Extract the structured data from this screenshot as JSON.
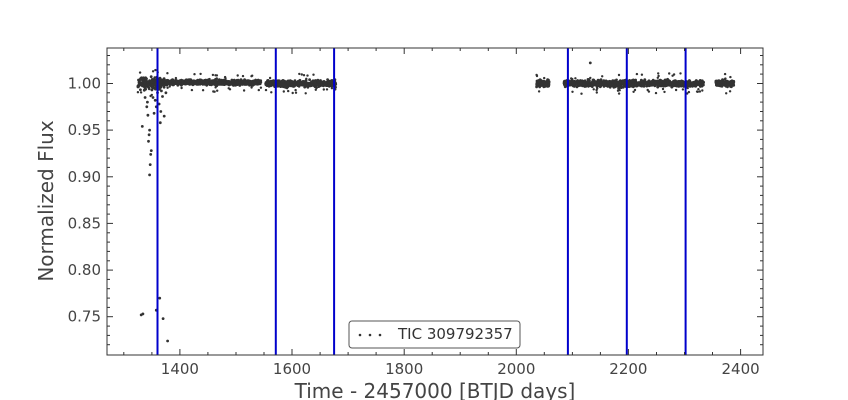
{
  "chart_data": {
    "type": "scatter",
    "title": "",
    "xlabel": "Time - 2457000 [BTJD days]",
    "ylabel": "Normalized Flux",
    "xlim": [
      1270,
      2440
    ],
    "ylim": [
      0.709,
      1.038
    ],
    "x_ticks": [
      1400,
      1600,
      1800,
      2000,
      2200,
      2400
    ],
    "x_tick_labels": [
      "1400",
      "1600",
      "1800",
      "2000",
      "2200",
      "2400"
    ],
    "y_ticks": [
      0.75,
      0.8,
      0.85,
      0.9,
      0.95,
      1.0
    ],
    "y_tick_labels": [
      "0.75",
      "0.80",
      "0.85",
      "0.90",
      "0.95",
      "1.00"
    ],
    "grid": false,
    "legend": {
      "placement": "bottom-center",
      "entries": [
        "TIC 309792357"
      ]
    },
    "series": [
      {
        "name": "TIC 309792357",
        "color": "#333333",
        "segments": [
          {
            "x_start": 1325,
            "x_end": 1373,
            "y_center": 1.0,
            "spread": 0.009
          },
          {
            "x_start": 1373,
            "x_end": 1545,
            "y_center": 1.001,
            "spread": 0.004
          },
          {
            "x_start": 1553,
            "x_end": 1678,
            "y_center": 1.0,
            "spread": 0.005
          },
          {
            "x_start": 2036,
            "x_end": 2059,
            "y_center": 1.0,
            "spread": 0.005
          },
          {
            "x_start": 2085,
            "x_end": 2334,
            "y_center": 1.0,
            "spread": 0.005
          },
          {
            "x_start": 2356,
            "x_end": 2388,
            "y_center": 1.0,
            "spread": 0.005
          }
        ],
        "outliers": [
          {
            "x": 1331,
            "y": 0.752
          },
          {
            "x": 1334,
            "y": 0.753
          },
          {
            "x": 1358,
            "y": 0.757
          },
          {
            "x": 1364,
            "y": 0.77
          },
          {
            "x": 1370,
            "y": 0.748
          },
          {
            "x": 1378,
            "y": 0.724
          },
          {
            "x": 1333,
            "y": 0.954
          },
          {
            "x": 1346,
            "y": 0.902
          },
          {
            "x": 1347,
            "y": 0.913
          },
          {
            "x": 1348,
            "y": 0.924
          },
          {
            "x": 1349,
            "y": 0.928
          },
          {
            "x": 1345,
            "y": 0.945
          },
          {
            "x": 1344,
            "y": 0.938
          },
          {
            "x": 1346,
            "y": 0.95
          },
          {
            "x": 1343,
            "y": 0.966
          },
          {
            "x": 1341,
            "y": 0.975
          },
          {
            "x": 1352,
            "y": 0.985
          },
          {
            "x": 1356,
            "y": 0.982
          },
          {
            "x": 1360,
            "y": 0.99
          },
          {
            "x": 1363,
            "y": 0.978
          },
          {
            "x": 1366,
            "y": 0.97
          },
          {
            "x": 1369,
            "y": 0.986
          },
          {
            "x": 1372,
            "y": 0.965
          },
          {
            "x": 1375,
            "y": 0.99
          },
          {
            "x": 1338,
            "y": 0.985
          },
          {
            "x": 1350,
            "y": 0.993
          },
          {
            "x": 1354,
            "y": 0.968
          },
          {
            "x": 1358,
            "y": 0.975
          },
          {
            "x": 1362,
            "y": 0.995
          },
          {
            "x": 1367,
            "y": 0.992
          },
          {
            "x": 1342,
            "y": 0.98
          },
          {
            "x": 1365,
            "y": 0.958
          },
          {
            "x": 2132,
            "y": 1.022
          }
        ]
      }
    ],
    "vertical_lines": {
      "color": "#0000cc",
      "x": [
        1360,
        1571,
        1675,
        2092,
        2197,
        2302
      ]
    }
  }
}
